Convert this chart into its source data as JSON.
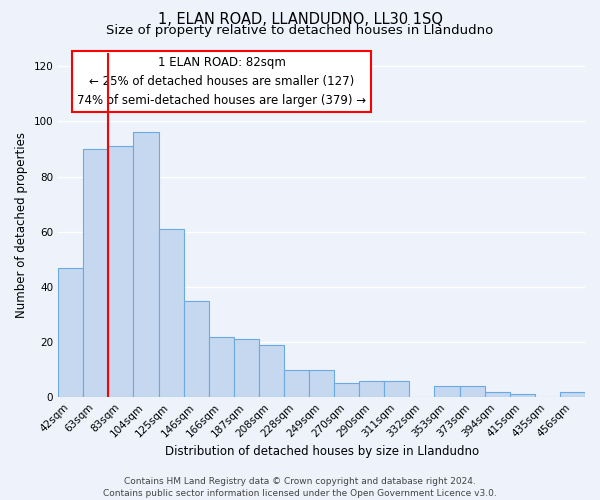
{
  "title": "1, ELAN ROAD, LLANDUDNO, LL30 1SQ",
  "subtitle": "Size of property relative to detached houses in Llandudno",
  "xlabel": "Distribution of detached houses by size in Llandudno",
  "ylabel": "Number of detached properties",
  "bar_labels": [
    "42sqm",
    "63sqm",
    "83sqm",
    "104sqm",
    "125sqm",
    "146sqm",
    "166sqm",
    "187sqm",
    "208sqm",
    "228sqm",
    "249sqm",
    "270sqm",
    "290sqm",
    "311sqm",
    "332sqm",
    "353sqm",
    "373sqm",
    "394sqm",
    "415sqm",
    "435sqm",
    "456sqm"
  ],
  "bar_values": [
    47,
    90,
    91,
    96,
    61,
    35,
    22,
    21,
    19,
    10,
    10,
    5,
    6,
    6,
    0,
    4,
    4,
    2,
    1,
    0,
    2
  ],
  "bar_color": "#c5d8f0",
  "bar_edge_color": "#6aaae0",
  "ylim": [
    0,
    125
  ],
  "yticks": [
    0,
    20,
    40,
    60,
    80,
    100,
    120
  ],
  "red_line_x": 1.5,
  "annotation_line1": "1 ELAN ROAD: 82sqm",
  "annotation_line2": "← 25% of detached houses are smaller (127)",
  "annotation_line3": "74% of semi-detached houses are larger (379) →",
  "footer_line1": "Contains HM Land Registry data © Crown copyright and database right 2024.",
  "footer_line2": "Contains public sector information licensed under the Open Government Licence v3.0.",
  "background_color": "#edf2fb",
  "grid_color": "#ffffff",
  "title_fontsize": 10.5,
  "subtitle_fontsize": 9.5,
  "xlabel_fontsize": 8.5,
  "ylabel_fontsize": 8.5,
  "tick_fontsize": 7.5,
  "annotation_fontsize": 8.5,
  "footer_fontsize": 6.5
}
